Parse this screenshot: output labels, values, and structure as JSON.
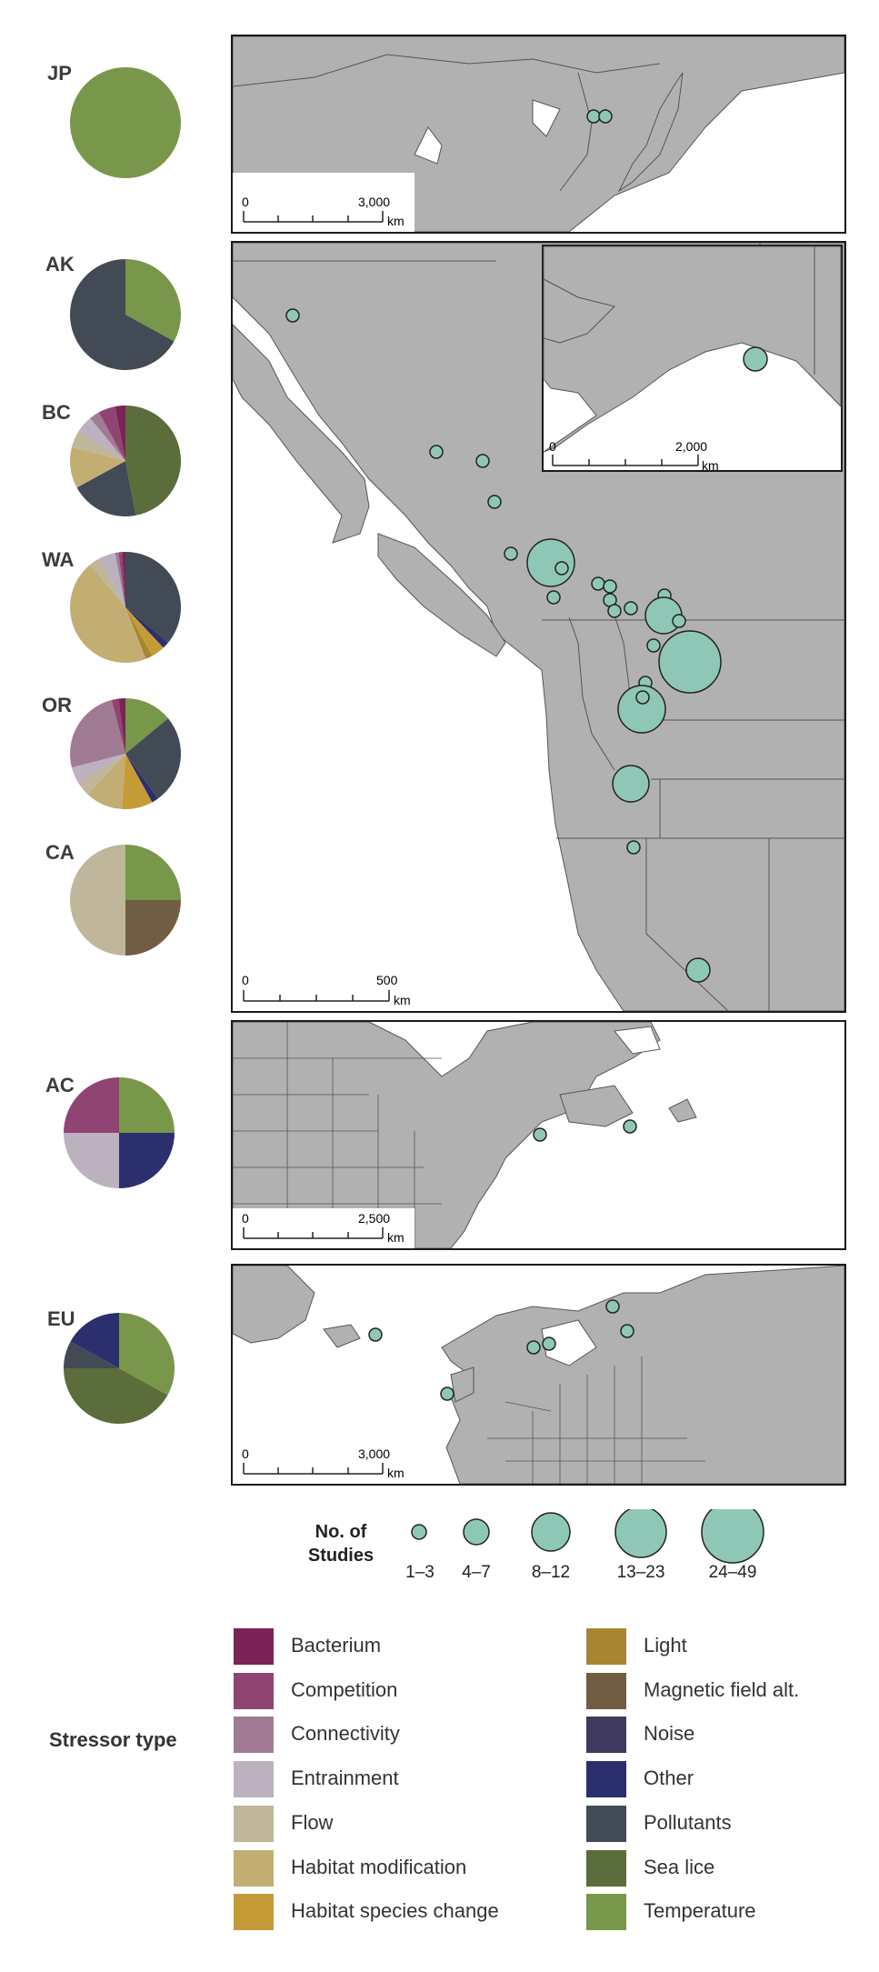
{
  "chart_data": {
    "type": "pie",
    "regions": [
      {
        "label": "JP",
        "slices": [
          {
            "stressor": "Temperature",
            "value": 100
          }
        ]
      },
      {
        "label": "AK",
        "slices": [
          {
            "stressor": "Temperature",
            "value": 33
          },
          {
            "stressor": "Pollutants",
            "value": 67
          }
        ]
      },
      {
        "label": "BC",
        "slices": [
          {
            "stressor": "Sea lice",
            "value": 47
          },
          {
            "stressor": "Pollutants",
            "value": 20
          },
          {
            "stressor": "Habitat modification",
            "value": 12
          },
          {
            "stressor": "Flow",
            "value": 5
          },
          {
            "stressor": "Entrainment",
            "value": 5
          },
          {
            "stressor": "Connectivity",
            "value": 3
          },
          {
            "stressor": "Competition",
            "value": 5
          },
          {
            "stressor": "Bacterium",
            "value": 3
          }
        ]
      },
      {
        "label": "WA",
        "slices": [
          {
            "stressor": "Pollutants",
            "value": 36
          },
          {
            "stressor": "Other",
            "value": 2
          },
          {
            "stressor": "Habitat species change",
            "value": 4
          },
          {
            "stressor": "Light",
            "value": 2
          },
          {
            "stressor": "Habitat modification",
            "value": 45
          },
          {
            "stressor": "Flow",
            "value": 3
          },
          {
            "stressor": "Entrainment",
            "value": 5
          },
          {
            "stressor": "Connectivity",
            "value": 1
          },
          {
            "stressor": "Competition",
            "value": 1
          },
          {
            "stressor": "Bacterium",
            "value": 1
          }
        ]
      },
      {
        "label": "OR",
        "slices": [
          {
            "stressor": "Temperature",
            "value": 14
          },
          {
            "stressor": "Pollutants",
            "value": 26
          },
          {
            "stressor": "Other",
            "value": 2
          },
          {
            "stressor": "Habitat species change",
            "value": 9
          },
          {
            "stressor": "Habitat modification",
            "value": 11
          },
          {
            "stressor": "Flow",
            "value": 4
          },
          {
            "stressor": "Entrainment",
            "value": 5
          },
          {
            "stressor": "Connectivity",
            "value": 25
          },
          {
            "stressor": "Competition",
            "value": 2
          },
          {
            "stressor": "Bacterium",
            "value": 2
          }
        ]
      },
      {
        "label": "CA",
        "slices": [
          {
            "stressor": "Temperature",
            "value": 25
          },
          {
            "stressor": "Magnetic field alt.",
            "value": 25
          },
          {
            "stressor": "Flow",
            "value": 50
          }
        ]
      },
      {
        "label": "AC",
        "slices": [
          {
            "stressor": "Temperature",
            "value": 25
          },
          {
            "stressor": "Other",
            "value": 25
          },
          {
            "stressor": "Entrainment",
            "value": 25
          },
          {
            "stressor": "Competition",
            "value": 25
          }
        ]
      },
      {
        "label": "EU",
        "slices": [
          {
            "stressor": "Temperature",
            "value": 33
          },
          {
            "stressor": "Sea lice",
            "value": 42
          },
          {
            "stressor": "Pollutants",
            "value": 8
          },
          {
            "stressor": "Other",
            "value": 17
          }
        ]
      }
    ],
    "study_size_legend": {
      "title": "No. of Studies",
      "classes": [
        "1–3",
        "4–7",
        "8–12",
        "13–23",
        "24–49"
      ]
    },
    "stressor_legend": {
      "title": "Stressor type",
      "items": [
        {
          "name": "Bacterium",
          "color": "#7a2356"
        },
        {
          "name": "Competition",
          "color": "#8f4472"
        },
        {
          "name": "Connectivity",
          "color": "#a07b93"
        },
        {
          "name": "Entrainment",
          "color": "#bbb1bf"
        },
        {
          "name": "Flow",
          "color": "#bfb69b"
        },
        {
          "name": "Habitat modification",
          "color": "#c2ad72"
        },
        {
          "name": "Habitat species change",
          "color": "#c59b36"
        },
        {
          "name": "Light",
          "color": "#a78532"
        },
        {
          "name": "Magnetic field alt.",
          "color": "#705d44"
        },
        {
          "name": "Noise",
          "color": "#403a5e"
        },
        {
          "name": "Other",
          "color": "#2c2f6e"
        },
        {
          "name": "Pollutants",
          "color": "#424a56"
        },
        {
          "name": "Sea lice",
          "color": "#5b6d3a"
        },
        {
          "name": "Temperature",
          "color": "#78974a"
        }
      ]
    }
  },
  "maps": {
    "jp": {
      "scale_zero": "0",
      "scale_max": "3,000",
      "unit": "km"
    },
    "west": {
      "scale_zero": "0",
      "scale_max": "500",
      "unit": "km"
    },
    "ak_inset": {
      "scale_zero": "0",
      "scale_max": "2,000",
      "unit": "km"
    },
    "ac": {
      "scale_zero": "0",
      "scale_max": "2,500",
      "unit": "km"
    },
    "eu": {
      "scale_zero": "0",
      "scale_max": "3,000",
      "unit": "km"
    }
  },
  "colors": {
    "land": "#b1b1b1",
    "water": "#ffffff",
    "study_circle": "#8fc7b7",
    "border": "#555555"
  }
}
